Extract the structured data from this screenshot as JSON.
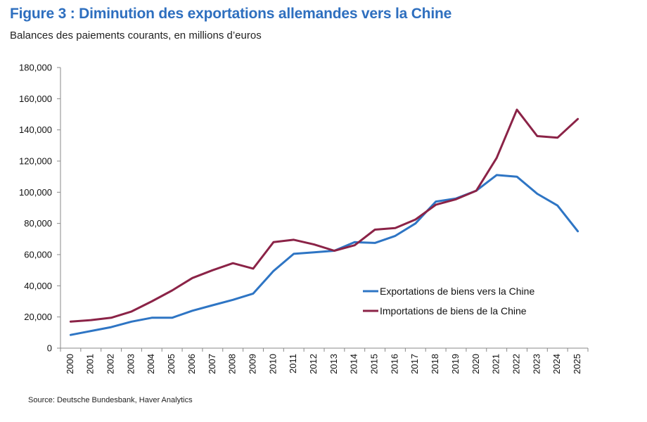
{
  "title": "Figure 3 : Diminution des exportations allemandes vers la Chine",
  "subtitle": "Balances des paiements courants, en millions d’euros",
  "source": "Source: Deutsche Bundesbank, Haver Analytics",
  "chart_data": {
    "type": "line",
    "x": [
      "2000",
      "2001",
      "2002",
      "2003",
      "2004",
      "2005",
      "2006",
      "2007",
      "2008",
      "2009",
      "2010",
      "2011",
      "2012",
      "2013",
      "2014",
      "2015",
      "2016",
      "2017",
      "2018",
      "2019",
      "2020",
      "2021",
      "2022",
      "2023",
      "2024",
      "2025"
    ],
    "series": [
      {
        "name": "Exportations de biens vers la Chine",
        "color": "#2e75c4",
        "values": [
          8500,
          11000,
          13500,
          17000,
          19500,
          19500,
          24000,
          27500,
          31000,
          35000,
          49500,
          60500,
          61500,
          62500,
          68000,
          67500,
          72000,
          80000,
          94000,
          96000,
          101000,
          111000,
          110000,
          99000,
          91500,
          75000
        ]
      },
      {
        "name": "Importations de biens de la Chine",
        "color": "#8b2347",
        "values": [
          17000,
          18000,
          19500,
          23500,
          30000,
          37000,
          45000,
          50000,
          54500,
          51000,
          68000,
          69500,
          66500,
          62500,
          66000,
          76000,
          77000,
          82500,
          92000,
          95500,
          101000,
          122000,
          153000,
          136000,
          135000,
          147000
        ]
      }
    ],
    "yticks": [
      "0",
      "20,000",
      "40,000",
      "60,000",
      "80,000",
      "100,000",
      "120,000",
      "140,000",
      "160,000",
      "180,000"
    ],
    "ylim": [
      0,
      180000
    ],
    "grid": false,
    "legend": "inside-right"
  }
}
